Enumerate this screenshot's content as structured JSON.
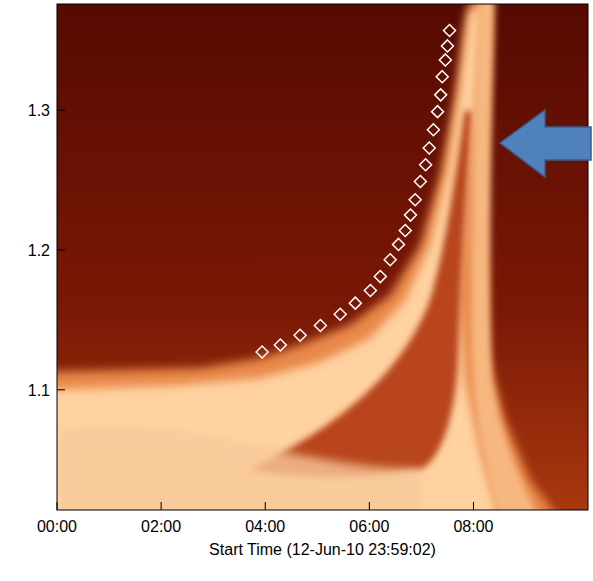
{
  "chart_data": {
    "type": "scatter",
    "xlabel": "Start Time (12-Jun-10 23:59:02)",
    "x": [
      3.94,
      4.29,
      4.67,
      5.06,
      5.44,
      5.73,
      6.02,
      6.21,
      6.4,
      6.56,
      6.69,
      6.79,
      6.88,
      6.98,
      7.08,
      7.15,
      7.23,
      7.31,
      7.37,
      7.4,
      7.46,
      7.5,
      7.54
    ],
    "values": [
      1.127,
      1.132,
      1.139,
      1.146,
      1.154,
      1.162,
      1.171,
      1.181,
      1.193,
      1.204,
      1.214,
      1.225,
      1.236,
      1.249,
      1.261,
      1.273,
      1.286,
      1.299,
      1.311,
      1.324,
      1.336,
      1.346,
      1.357
    ],
    "color": "#ffffff",
    "marker": "diamond",
    "xlim": [
      0,
      10.2
    ],
    "ylim": [
      1.014,
      1.376
    ],
    "xticks": [
      {
        "value": 0,
        "label": "00:00"
      },
      {
        "value": 2,
        "label": "02:00"
      },
      {
        "value": 4,
        "label": "04:00"
      },
      {
        "value": 6,
        "label": "06:00"
      },
      {
        "value": 8,
        "label": "08:00"
      }
    ],
    "yticks": [
      1.1,
      1.2,
      1.3
    ]
  }
}
